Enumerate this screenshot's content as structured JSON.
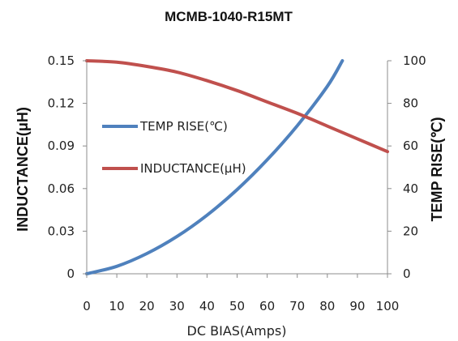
{
  "chart_data": {
    "type": "line",
    "title": "MCMB-1040-R15MT",
    "xlabel": "DC  BIAS(Amps)",
    "ylabel_left": "INDUCTANCE(μH)",
    "ylabel_right": "TEMP RISE(℃)",
    "xlim": [
      0,
      100
    ],
    "ylim_left": [
      0,
      0.15
    ],
    "ylim_right": [
      0,
      100
    ],
    "x_ticks": [
      "0",
      "10",
      "20",
      "30",
      "40",
      "50",
      "60",
      "70",
      "80",
      "90",
      "100"
    ],
    "y_left_ticks": [
      "0",
      "0.03",
      "0.06",
      "0.09",
      "0.12",
      "0.15"
    ],
    "y_right_ticks": [
      "0",
      "20",
      "40",
      "60",
      "80",
      "100"
    ],
    "grid": false,
    "legend_position": "left",
    "series": [
      {
        "name": "TEMP RISE(℃)",
        "axis": "right",
        "color": "#4F81BD",
        "x": [
          0,
          10,
          20,
          30,
          40,
          50,
          60,
          70,
          80,
          85
        ],
        "y": [
          0,
          3.5,
          9.5,
          17.5,
          27.5,
          39.5,
          53.5,
          69.5,
          88,
          100
        ]
      },
      {
        "name": "INDUCTANCE(μH)",
        "axis": "left",
        "color": "#C0504D",
        "x": [
          0,
          10,
          20,
          30,
          40,
          50,
          60,
          70,
          80,
          90,
          100
        ],
        "y": [
          0.15,
          0.149,
          0.146,
          0.142,
          0.136,
          0.129,
          0.121,
          0.113,
          0.104,
          0.095,
          0.086
        ]
      }
    ]
  }
}
